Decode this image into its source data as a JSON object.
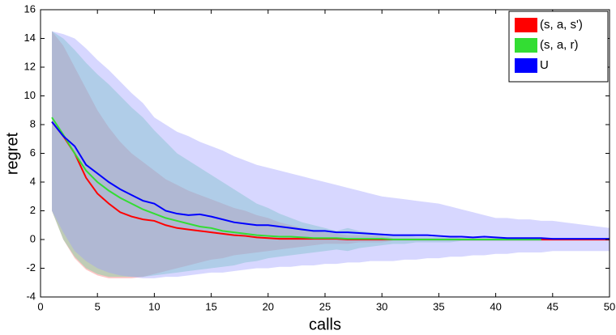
{
  "chart_data": {
    "type": "line",
    "x_label": "calls",
    "y_label": "regret",
    "xlim": [
      0,
      50
    ],
    "ylim": [
      -4,
      16
    ],
    "xticks": [
      0,
      5,
      10,
      15,
      20,
      25,
      30,
      35,
      40,
      45,
      50
    ],
    "yticks": [
      -4,
      -2,
      0,
      2,
      4,
      6,
      8,
      10,
      12,
      14,
      16
    ],
    "legend": "upper right",
    "x": [
      1,
      2,
      3,
      4,
      5,
      6,
      7,
      8,
      9,
      10,
      11,
      12,
      13,
      14,
      15,
      16,
      17,
      18,
      19,
      20,
      21,
      22,
      23,
      24,
      25,
      26,
      27,
      28,
      29,
      30,
      31,
      32,
      33,
      34,
      35,
      36,
      37,
      38,
      39,
      40,
      41,
      42,
      43,
      44,
      45,
      46,
      47,
      48,
      49,
      50
    ],
    "series": [
      {
        "name": "(s, a, s')",
        "color": "#ff0000",
        "band_color": "#ff6f6f",
        "values": [
          8.2,
          7.2,
          6.0,
          4.3,
          3.2,
          2.5,
          1.9,
          1.6,
          1.4,
          1.3,
          1.0,
          0.8,
          0.7,
          0.6,
          0.5,
          0.4,
          0.3,
          0.25,
          0.15,
          0.1,
          0.05,
          0.05,
          0.05,
          0.05,
          0.05,
          0.05,
          0,
          0,
          0,
          0,
          0,
          0,
          0,
          0,
          0,
          0,
          0,
          0,
          0,
          0,
          0,
          0,
          0,
          0,
          0,
          0,
          0,
          0,
          0,
          0
        ],
        "upper": [
          14.5,
          13.5,
          12,
          10.5,
          9,
          7.8,
          6.8,
          6,
          5.4,
          4.8,
          4.2,
          3.8,
          3.4,
          3.1,
          2.8,
          2.5,
          2.2,
          2,
          1.7,
          1.5,
          1.2,
          1,
          0.8,
          0.6,
          0.5,
          0.4,
          0.3,
          0.3,
          0.3,
          0.25,
          0.1,
          0.1,
          0.1,
          0.1,
          0.1,
          0.1,
          0.1,
          0.1,
          0.1,
          0.1,
          0.1,
          0.1,
          0.1,
          0.1,
          0.1,
          0.1,
          0.1,
          0.1,
          0.1,
          0.1
        ],
        "lower": [
          2,
          0,
          -1.3,
          -2.1,
          -2.5,
          -2.7,
          -2.7,
          -2.7,
          -2.6,
          -2.4,
          -2.2,
          -2,
          -1.8,
          -1.6,
          -1.4,
          -1.3,
          -1.1,
          -1,
          -0.9,
          -0.8,
          -0.7,
          -0.6,
          -0.5,
          -0.4,
          -0.3,
          -0.3,
          -0.3,
          -0.2,
          -0.2,
          -0.2,
          -0.1,
          -0.1,
          -0.1,
          -0.1,
          -0.1,
          -0.1,
          -0.1,
          -0.1,
          -0.1,
          -0.1,
          -0.1,
          -0.1,
          -0.1,
          -0.1,
          -0.1,
          -0.1,
          -0.1,
          -0.1,
          -0.1,
          -0.1
        ]
      },
      {
        "name": "(s, a, r)",
        "color": "#33dd33",
        "band_color": "#5fd6a0",
        "values": [
          8.5,
          7.3,
          6.0,
          4.8,
          4.0,
          3.4,
          2.9,
          2.5,
          2.1,
          1.8,
          1.5,
          1.3,
          1.1,
          0.9,
          0.8,
          0.6,
          0.5,
          0.4,
          0.3,
          0.25,
          0.2,
          0.2,
          0.15,
          0.1,
          0.1,
          0.1,
          0.05,
          0.05,
          0.05,
          0.05,
          0,
          0,
          0,
          0,
          0,
          0,
          0,
          0,
          0,
          0,
          0,
          0,
          0,
          0,
          null,
          null,
          null,
          null,
          null,
          null
        ],
        "upper": [
          14.5,
          14,
          13.2,
          12.3,
          11.5,
          10.8,
          10,
          9.2,
          8.5,
          7.6,
          6.8,
          6,
          5.5,
          5,
          4.5,
          4,
          3.5,
          3,
          2.5,
          2.2,
          1.8,
          1.5,
          1.2,
          1,
          0.8,
          0.6,
          0.8,
          0.6,
          0.5,
          0.4,
          0.3,
          0.3,
          0.2,
          0.2,
          0.2,
          0.2,
          0.1,
          0.1,
          0.1,
          0.1,
          0.1,
          0.1,
          0.1,
          0.1,
          null,
          null,
          null,
          null,
          null,
          null
        ],
        "lower": [
          2,
          0,
          -1.2,
          -2,
          -2.4,
          -2.6,
          -2.6,
          -2.6,
          -2.6,
          -2.5,
          -2.4,
          -2.3,
          -2.2,
          -2.1,
          -2,
          -1.9,
          -1.8,
          -1.6,
          -1.5,
          -1.3,
          -1.2,
          -1.1,
          -1,
          -0.9,
          -0.8,
          -0.7,
          -0.8,
          -0.6,
          -0.5,
          -0.4,
          -0.3,
          -0.3,
          -0.2,
          -0.2,
          -0.2,
          -0.2,
          -0.1,
          -0.1,
          -0.1,
          -0.1,
          -0.1,
          -0.1,
          -0.1,
          -0.1,
          null,
          null,
          null,
          null,
          null,
          null
        ]
      },
      {
        "name": "U",
        "color": "#0000ff",
        "band_color": "#9a9aff",
        "values": [
          8.2,
          7.2,
          6.5,
          5.2,
          4.6,
          4.0,
          3.5,
          3.1,
          2.7,
          2.5,
          2.0,
          1.8,
          1.7,
          1.75,
          1.6,
          1.4,
          1.2,
          1.1,
          1.0,
          1.0,
          0.9,
          0.8,
          0.7,
          0.6,
          0.6,
          0.5,
          0.5,
          0.45,
          0.4,
          0.35,
          0.3,
          0.3,
          0.3,
          0.3,
          0.25,
          0.2,
          0.2,
          0.15,
          0.2,
          0.15,
          0.1,
          0.1,
          0.1,
          0.1,
          0.05,
          0.05,
          0.05,
          0.05,
          0.05,
          0.05
        ],
        "upper": [
          14.5,
          14.3,
          14,
          13.3,
          12.5,
          11.8,
          11,
          10.2,
          9.5,
          8.5,
          8,
          7.5,
          7.2,
          6.8,
          6.5,
          6.2,
          5.8,
          5.5,
          5.2,
          5,
          4.8,
          4.6,
          4.4,
          4.2,
          4,
          3.8,
          3.6,
          3.4,
          3.2,
          3,
          2.9,
          2.8,
          2.7,
          2.6,
          2.5,
          2.3,
          2.1,
          1.9,
          1.7,
          1.5,
          1.5,
          1.4,
          1.4,
          1.3,
          1.3,
          1.2,
          1.1,
          1,
          0.9,
          0.8
        ],
        "lower": [
          2,
          0.5,
          -0.8,
          -1.5,
          -2,
          -2.3,
          -2.5,
          -2.6,
          -2.7,
          -2.7,
          -2.6,
          -2.6,
          -2.5,
          -2.4,
          -2.3,
          -2.3,
          -2.2,
          -2.1,
          -2,
          -2,
          -1.9,
          -1.9,
          -1.8,
          -1.8,
          -1.7,
          -1.7,
          -1.6,
          -1.6,
          -1.5,
          -1.5,
          -1.5,
          -1.4,
          -1.4,
          -1.3,
          -1.3,
          -1.2,
          -1.2,
          -1.1,
          -1.1,
          -1,
          -1,
          -0.9,
          -0.9,
          -0.9,
          -0.8,
          -0.8,
          -0.8,
          -0.8,
          -0.8,
          -0.8
        ]
      }
    ]
  }
}
